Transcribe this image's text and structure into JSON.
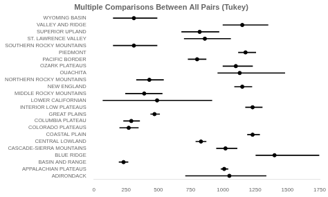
{
  "chart_data": {
    "type": "interval",
    "title": "Multiple Comparisons Between All Pairs (Tukey)",
    "categories": [
      "WYOMING BASIN",
      "VALLEY AND RIDGE",
      "SUPERIOR UPLAND",
      "ST. LAWRENCE VALLEY",
      "SOUTHERN ROCKY MOUNTAINS",
      "PIEDMONT",
      "PACIFIC BORDER",
      "OZARK PLATEAUS",
      "OUACHITA",
      "NORTHERN ROCKY MOUNTAINS",
      "NEW ENGLAND",
      "MIDDLE ROCKY MOUNTAINS",
      "LOWER CALIFORNIAN",
      "INTERIOR LOW PLATEAUS",
      "GREAT PLAINS",
      "COLUMBIA PLATEAU",
      "COLORADO PLATEAUS",
      "COASTAL PLAIN",
      "CENTRAL LOWLAND",
      "CASCADE-SIERRA MOUNTAINS",
      "BLUE RIDGE",
      "BASIN AND RANGE",
      "APPALACHIAN PLATEAUS",
      "ADIRONDACK"
    ],
    "values": [
      310,
      1150,
      820,
      860,
      310,
      1175,
      800,
      1100,
      1130,
      430,
      1150,
      390,
      490,
      1230,
      470,
      290,
      270,
      1230,
      830,
      1020,
      1400,
      230,
      1010,
      1050
    ],
    "lower": [
      150,
      1000,
      680,
      700,
      150,
      1120,
      730,
      1000,
      960,
      330,
      1090,
      245,
      70,
      1175,
      440,
      230,
      200,
      1190,
      790,
      950,
      1255,
      195,
      985,
      710
    ],
    "upper": [
      490,
      1350,
      970,
      1060,
      490,
      1255,
      870,
      1230,
      1480,
      540,
      1225,
      530,
      915,
      1305,
      510,
      355,
      345,
      1285,
      870,
      1110,
      1745,
      265,
      1040,
      1335
    ],
    "color": "#000000",
    "xlim": [
      0,
      1750
    ],
    "xticks": [
      0,
      250,
      500,
      750,
      1000,
      1250,
      1500,
      1750
    ],
    "grid": false
  }
}
